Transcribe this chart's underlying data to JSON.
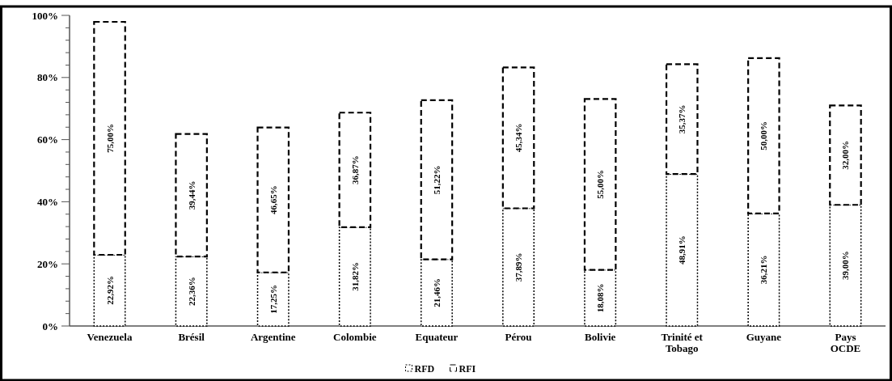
{
  "chart_data": {
    "type": "bar",
    "stacked": true,
    "categories": [
      "Venezuela",
      "Brésil",
      "Argentine",
      "Colombie",
      "Equateur",
      "Pérou",
      "Bolivie",
      "Trinité et\nTobago",
      "Guyane",
      "Pays\nOCDE"
    ],
    "series": [
      {
        "name": "RFD",
        "color": "#ffffff",
        "line_style": "dotted",
        "values": [
          22.92,
          22.36,
          17.25,
          31.82,
          21.46,
          37.89,
          18.08,
          48.91,
          36.21,
          39.0
        ],
        "value_labels": [
          "22,92%",
          "22,36%",
          "17,25%",
          "31,82%",
          "21,46%",
          "37,89%",
          "18,08%",
          "48,91%",
          "36,21%",
          "39,00%"
        ]
      },
      {
        "name": "RFI",
        "color": "#ffffff",
        "line_style": "dashed",
        "values": [
          75.0,
          39.44,
          46.65,
          36.87,
          51.22,
          45.34,
          55.0,
          35.37,
          50.0,
          32.0
        ],
        "value_labels": [
          "75,00%",
          "39,44%",
          "46,65%",
          "36,87%",
          "51,22%",
          "45,34%",
          "55,00%",
          "35,37%",
          "50,00%",
          "32,00%"
        ]
      }
    ],
    "ylim": [
      0,
      100
    ],
    "yticks": [
      {
        "value": 0,
        "label": "0%"
      },
      {
        "value": 4,
        "label": null
      },
      {
        "value": 8,
        "label": null
      },
      {
        "value": 12,
        "label": null
      },
      {
        "value": 16,
        "label": null
      },
      {
        "value": 20,
        "label": "20%"
      },
      {
        "value": 24,
        "label": null
      },
      {
        "value": 28,
        "label": null
      },
      {
        "value": 32,
        "label": null
      },
      {
        "value": 36,
        "label": null
      },
      {
        "value": 40,
        "label": "40%"
      },
      {
        "value": 44,
        "label": null
      },
      {
        "value": 48,
        "label": null
      },
      {
        "value": 52,
        "label": null
      },
      {
        "value": 56,
        "label": null
      },
      {
        "value": 60,
        "label": "60%"
      },
      {
        "value": 64,
        "label": null
      },
      {
        "value": 68,
        "label": null
      },
      {
        "value": 72,
        "label": null
      },
      {
        "value": 76,
        "label": null
      },
      {
        "value": 80,
        "label": "80%"
      },
      {
        "value": 84,
        "label": null
      },
      {
        "value": 88,
        "label": null
      },
      {
        "value": 92,
        "label": null
      },
      {
        "value": 96,
        "label": null
      },
      {
        "value": 100,
        "label": "100%"
      }
    ],
    "grid": false,
    "legend": "bottom"
  }
}
